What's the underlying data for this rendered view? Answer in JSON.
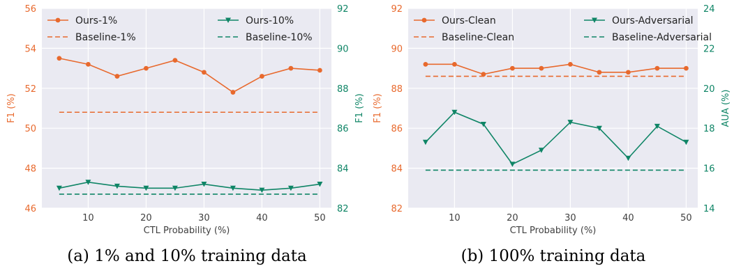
{
  "chart_data": [
    {
      "type": "line",
      "caption": "(a) 1% and 10% training data",
      "xlabel": "CTL Probability (%)",
      "ylabel_left": "F1 (%)",
      "ylabel_right": "F1 (%)",
      "xlim": [
        2,
        52
      ],
      "ylim_left": [
        46,
        56
      ],
      "ylim_right": [
        82,
        92
      ],
      "x_ticks": [
        10,
        20,
        30,
        40,
        50
      ],
      "y_ticks_left": [
        46,
        48,
        50,
        52,
        54,
        56
      ],
      "y_ticks_right": [
        82,
        84,
        86,
        88,
        90,
        92
      ],
      "grid": true,
      "legend_placement": "top",
      "x": [
        5,
        10,
        15,
        20,
        25,
        30,
        35,
        40,
        45,
        50
      ],
      "series": [
        {
          "name": "Ours-1%",
          "axis": "left",
          "style": "solid",
          "marker": "circle",
          "color": "#e8692d",
          "values": [
            53.5,
            53.2,
            52.6,
            53.0,
            53.4,
            52.8,
            51.8,
            52.6,
            53.0,
            52.9
          ]
        },
        {
          "name": "Baseline-1%",
          "axis": "left",
          "style": "dashed",
          "marker": "none",
          "color": "#e8692d",
          "values": [
            50.8,
            50.8,
            50.8,
            50.8,
            50.8,
            50.8,
            50.8,
            50.8,
            50.8,
            50.8
          ]
        },
        {
          "name": "Ours-10%",
          "axis": "right",
          "style": "solid",
          "marker": "triangle-down",
          "color": "#0f8566",
          "values": [
            83.0,
            83.3,
            83.1,
            83.0,
            83.0,
            83.2,
            83.0,
            82.9,
            83.0,
            83.2
          ]
        },
        {
          "name": "Baseline-10%",
          "axis": "right",
          "style": "dashed",
          "marker": "none",
          "color": "#0f8566",
          "values": [
            82.7,
            82.7,
            82.7,
            82.7,
            82.7,
            82.7,
            82.7,
            82.7,
            82.7,
            82.7
          ]
        }
      ]
    },
    {
      "type": "line",
      "caption": "(b) 100% training data",
      "xlabel": "CTL Probability (%)",
      "ylabel_left": "F1 (%)",
      "ylabel_right": "AUA (%)",
      "xlim": [
        2,
        52
      ],
      "ylim_left": [
        82,
        92
      ],
      "ylim_right": [
        14,
        24
      ],
      "x_ticks": [
        10,
        20,
        30,
        40,
        50
      ],
      "y_ticks_left": [
        82,
        84,
        86,
        88,
        90,
        92
      ],
      "y_ticks_right": [
        14,
        16,
        18,
        20,
        22,
        24
      ],
      "grid": true,
      "legend_placement": "top",
      "x": [
        5,
        10,
        15,
        20,
        25,
        30,
        35,
        40,
        45,
        50
      ],
      "series": [
        {
          "name": "Ours-Clean",
          "axis": "left",
          "style": "solid",
          "marker": "circle",
          "color": "#e8692d",
          "values": [
            89.2,
            89.2,
            88.7,
            89.0,
            89.0,
            89.2,
            88.8,
            88.8,
            89.0,
            89.0
          ]
        },
        {
          "name": "Baseline-Clean",
          "axis": "left",
          "style": "dashed",
          "marker": "none",
          "color": "#e8692d",
          "values": [
            88.6,
            88.6,
            88.6,
            88.6,
            88.6,
            88.6,
            88.6,
            88.6,
            88.6,
            88.6
          ]
        },
        {
          "name": "Ours-Adversarial",
          "axis": "right",
          "style": "solid",
          "marker": "triangle-down",
          "color": "#0f8566",
          "values": [
            17.3,
            18.8,
            18.2,
            16.2,
            16.9,
            18.3,
            18.0,
            16.5,
            18.1,
            17.3
          ]
        },
        {
          "name": "Baseline-Adversarial",
          "axis": "right",
          "style": "dashed",
          "marker": "none",
          "color": "#0f8566",
          "values": [
            15.9,
            15.9,
            15.9,
            15.9,
            15.9,
            15.9,
            15.9,
            15.9,
            15.9,
            15.9
          ]
        }
      ]
    }
  ],
  "colors": {
    "plot_background": "#eaeaf2",
    "grid": "#ffffff",
    "left_axis": "#e8692d",
    "right_axis": "#0f8566",
    "x_axis": "#404040"
  }
}
